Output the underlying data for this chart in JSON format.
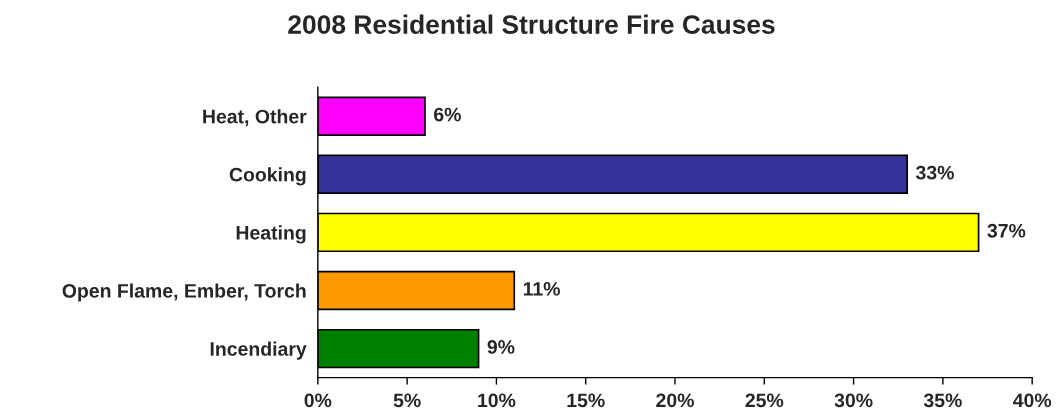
{
  "chart_data": {
    "type": "bar",
    "orientation": "horizontal",
    "title": "2008 Residential Structure Fire Causes",
    "categories": [
      "Heat, Other",
      "Cooking",
      "Heating",
      "Open Flame, Ember, Torch",
      "Incendiary"
    ],
    "values": [
      6,
      33,
      37,
      11,
      9
    ],
    "colors": [
      "#ff00ff",
      "#333399",
      "#ffff00",
      "#ff9900",
      "#008000"
    ],
    "value_labels": [
      "6%",
      "33%",
      "37%",
      "11%",
      "9%"
    ],
    "xlim": [
      0,
      40
    ],
    "xticks": [
      {
        "value": 0,
        "label": "0%"
      },
      {
        "value": 5,
        "label": "5%"
      },
      {
        "value": 10,
        "label": "10%"
      },
      {
        "value": 15,
        "label": "15%"
      },
      {
        "value": 20,
        "label": "20%"
      },
      {
        "value": 25,
        "label": "25%"
      },
      {
        "value": 30,
        "label": "30%"
      },
      {
        "value": 35,
        "label": "35%"
      },
      {
        "value": 40,
        "label": "40%"
      }
    ]
  }
}
